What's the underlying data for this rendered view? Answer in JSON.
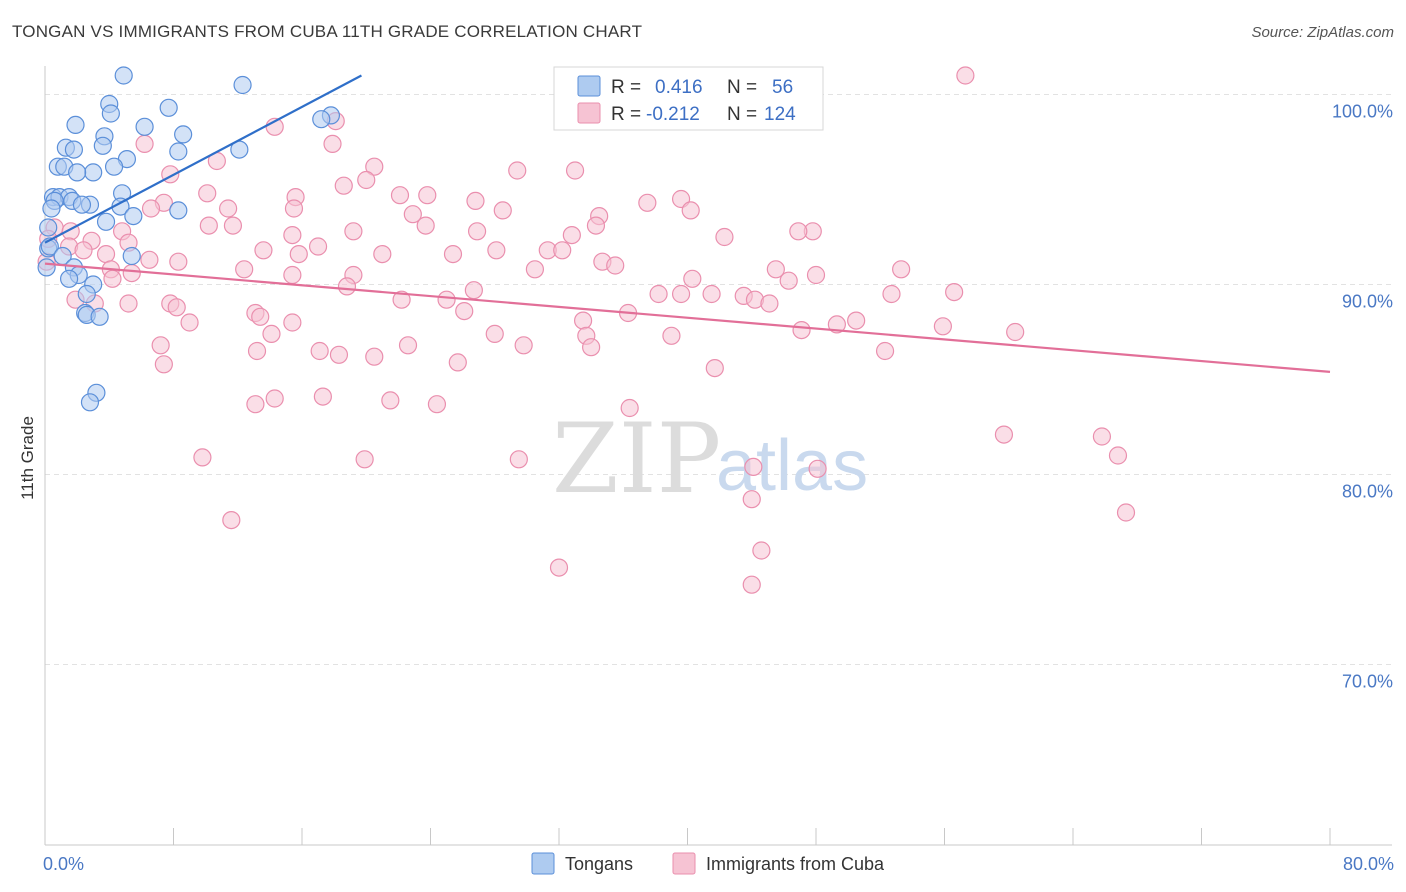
{
  "header": {
    "title": "TONGAN VS IMMIGRANTS FROM CUBA 11TH GRADE CORRELATION CHART",
    "source": "Source: ZipAtlas.com"
  },
  "watermark": {
    "zip": "ZIP",
    "atlas": "atlas"
  },
  "legend": {
    "tongans": {
      "r_label": "R =",
      "r_value": "0.416",
      "n_label": "N =",
      "n_value": "56"
    },
    "cuba": {
      "r_label": "R =",
      "r_value": "-0.212",
      "n_label": "N =",
      "n_value": "124"
    }
  },
  "bottom_legend": {
    "tongans": "Tongans",
    "cuba": "Immigrants from Cuba"
  },
  "colors": {
    "tongans_fill": "#aecbf0",
    "tongans_stroke": "#5b8fd9",
    "tongans_line": "#2f6fc9",
    "cuba_fill": "#f6c3d3",
    "cuba_stroke": "#ea8fae",
    "cuba_line": "#e26f98",
    "grid": "#e2e2e2",
    "tick_text": "#4a78c4"
  },
  "chart_data": {
    "type": "scatter",
    "title": "TONGAN VS IMMIGRANTS FROM CUBA 11TH GRADE CORRELATION CHART",
    "xlabel": "",
    "ylabel": "11th Grade",
    "xlim": [
      0,
      80
    ],
    "ylim": [
      60.5,
      101.5
    ],
    "x_tick_labels": [
      {
        "value": 0,
        "label": "0.0%"
      },
      {
        "value": 80,
        "label": "80.0%"
      }
    ],
    "x_minor_ticks": [
      0,
      8,
      16,
      24,
      32,
      40,
      48,
      56,
      64,
      72,
      80
    ],
    "y_tick_labels": [
      {
        "value": 100,
        "label": "100.0%"
      },
      {
        "value": 90,
        "label": "90.0%"
      },
      {
        "value": 80,
        "label": "80.0%"
      },
      {
        "value": 70,
        "label": "70.0%"
      }
    ],
    "grid": true,
    "series": [
      {
        "name": "Tongans",
        "trend": {
          "x": [
            0.0,
            19.7
          ],
          "y": [
            92.2,
            101.0
          ]
        },
        "points": [
          [
            4.9,
            101.0
          ],
          [
            12.3,
            100.5
          ],
          [
            4.0,
            99.5
          ],
          [
            7.7,
            99.3
          ],
          [
            4.1,
            99.0
          ],
          [
            17.8,
            98.9
          ],
          [
            17.2,
            98.7
          ],
          [
            1.9,
            98.4
          ],
          [
            6.2,
            98.3
          ],
          [
            3.7,
            97.8
          ],
          [
            8.6,
            97.9
          ],
          [
            3.6,
            97.3
          ],
          [
            1.3,
            97.2
          ],
          [
            1.8,
            97.1
          ],
          [
            8.3,
            97.0
          ],
          [
            12.1,
            97.1
          ],
          [
            5.1,
            96.6
          ],
          [
            0.8,
            96.2
          ],
          [
            1.2,
            96.2
          ],
          [
            4.3,
            96.2
          ],
          [
            3.0,
            95.9
          ],
          [
            2.0,
            95.9
          ],
          [
            4.8,
            94.8
          ],
          [
            0.5,
            94.6
          ],
          [
            0.9,
            94.6
          ],
          [
            1.5,
            94.6
          ],
          [
            0.6,
            94.4
          ],
          [
            1.7,
            94.4
          ],
          [
            2.8,
            94.2
          ],
          [
            2.3,
            94.2
          ],
          [
            0.4,
            94.0
          ],
          [
            4.7,
            94.1
          ],
          [
            8.3,
            93.9
          ],
          [
            5.5,
            93.6
          ],
          [
            3.8,
            93.3
          ],
          [
            0.2,
            93.0
          ],
          [
            0.2,
            91.9
          ],
          [
            0.3,
            92.0
          ],
          [
            1.1,
            91.5
          ],
          [
            5.4,
            91.5
          ],
          [
            0.1,
            90.9
          ],
          [
            1.8,
            90.9
          ],
          [
            2.1,
            90.5
          ],
          [
            1.5,
            90.3
          ],
          [
            3.0,
            90.0
          ],
          [
            2.6,
            89.5
          ],
          [
            2.5,
            88.5
          ],
          [
            2.6,
            88.4
          ],
          [
            3.4,
            88.3
          ],
          [
            3.2,
            84.3
          ],
          [
            2.8,
            83.8
          ]
        ]
      },
      {
        "name": "Immigrants from Cuba",
        "trend": {
          "x": [
            0.0,
            80.0
          ],
          "y": [
            91.1,
            85.4
          ]
        },
        "points": [
          [
            57.3,
            101.0
          ],
          [
            14.3,
            98.3
          ],
          [
            18.1,
            98.6
          ],
          [
            6.2,
            97.4
          ],
          [
            17.9,
            97.4
          ],
          [
            10.7,
            96.5
          ],
          [
            20.5,
            96.2
          ],
          [
            33.0,
            96.0
          ],
          [
            29.4,
            96.0
          ],
          [
            7.8,
            95.8
          ],
          [
            20.0,
            95.5
          ],
          [
            18.6,
            95.2
          ],
          [
            10.1,
            94.8
          ],
          [
            15.6,
            94.6
          ],
          [
            22.1,
            94.7
          ],
          [
            23.8,
            94.7
          ],
          [
            26.8,
            94.4
          ],
          [
            39.6,
            94.5
          ],
          [
            37.5,
            94.3
          ],
          [
            7.4,
            94.3
          ],
          [
            11.4,
            94.0
          ],
          [
            15.5,
            94.0
          ],
          [
            28.5,
            93.9
          ],
          [
            6.6,
            94.0
          ],
          [
            40.2,
            93.9
          ],
          [
            34.5,
            93.6
          ],
          [
            22.9,
            93.7
          ],
          [
            23.7,
            93.1
          ],
          [
            34.3,
            93.1
          ],
          [
            11.7,
            93.1
          ],
          [
            0.6,
            93.0
          ],
          [
            1.6,
            92.8
          ],
          [
            10.2,
            93.1
          ],
          [
            4.8,
            92.8
          ],
          [
            15.4,
            92.6
          ],
          [
            19.2,
            92.8
          ],
          [
            26.9,
            92.8
          ],
          [
            32.8,
            92.6
          ],
          [
            47.8,
            92.8
          ],
          [
            42.3,
            92.5
          ],
          [
            46.9,
            92.8
          ],
          [
            0.2,
            92.4
          ],
          [
            2.9,
            92.3
          ],
          [
            5.2,
            92.2
          ],
          [
            1.5,
            92.0
          ],
          [
            2.4,
            91.8
          ],
          [
            13.6,
            91.8
          ],
          [
            17.0,
            92.0
          ],
          [
            15.8,
            91.6
          ],
          [
            25.4,
            91.6
          ],
          [
            31.3,
            91.8
          ],
          [
            32.2,
            91.8
          ],
          [
            28.1,
            91.8
          ],
          [
            21.0,
            91.6
          ],
          [
            3.8,
            91.6
          ],
          [
            6.5,
            91.3
          ],
          [
            8.3,
            91.2
          ],
          [
            4.1,
            90.8
          ],
          [
            12.4,
            90.8
          ],
          [
            30.5,
            90.8
          ],
          [
            34.7,
            91.2
          ],
          [
            35.5,
            91.0
          ],
          [
            0.1,
            91.2
          ],
          [
            5.4,
            90.6
          ],
          [
            4.2,
            90.3
          ],
          [
            15.4,
            90.5
          ],
          [
            19.2,
            90.5
          ],
          [
            18.8,
            89.9
          ],
          [
            40.3,
            90.3
          ],
          [
            45.5,
            90.8
          ],
          [
            46.3,
            90.2
          ],
          [
            48.0,
            90.5
          ],
          [
            39.6,
            89.5
          ],
          [
            41.5,
            89.5
          ],
          [
            43.5,
            89.4
          ],
          [
            53.3,
            90.8
          ],
          [
            26.7,
            89.7
          ],
          [
            22.2,
            89.2
          ],
          [
            38.2,
            89.5
          ],
          [
            44.2,
            89.2
          ],
          [
            45.1,
            89.0
          ],
          [
            52.7,
            89.5
          ],
          [
            56.6,
            89.6
          ],
          [
            25.0,
            89.2
          ],
          [
            1.9,
            89.2
          ],
          [
            3.1,
            89.0
          ],
          [
            5.2,
            89.0
          ],
          [
            7.8,
            89.0
          ],
          [
            8.2,
            88.8
          ],
          [
            13.1,
            88.5
          ],
          [
            13.4,
            88.3
          ],
          [
            15.4,
            88.0
          ],
          [
            26.1,
            88.6
          ],
          [
            36.3,
            88.5
          ],
          [
            9.0,
            88.0
          ],
          [
            33.5,
            88.1
          ],
          [
            47.1,
            87.6
          ],
          [
            49.3,
            87.9
          ],
          [
            50.5,
            88.1
          ],
          [
            55.9,
            87.8
          ],
          [
            60.4,
            87.5
          ],
          [
            14.1,
            87.4
          ],
          [
            28.0,
            87.4
          ],
          [
            33.7,
            87.3
          ],
          [
            39.0,
            87.3
          ],
          [
            7.2,
            86.8
          ],
          [
            13.2,
            86.5
          ],
          [
            17.1,
            86.5
          ],
          [
            18.3,
            86.3
          ],
          [
            20.5,
            86.2
          ],
          [
            22.6,
            86.8
          ],
          [
            29.8,
            86.8
          ],
          [
            34.0,
            86.7
          ],
          [
            52.3,
            86.5
          ],
          [
            7.4,
            85.8
          ],
          [
            25.7,
            85.9
          ],
          [
            41.7,
            85.6
          ],
          [
            14.3,
            84.0
          ],
          [
            17.3,
            84.1
          ],
          [
            13.1,
            83.7
          ],
          [
            21.5,
            83.9
          ],
          [
            24.4,
            83.7
          ],
          [
            36.4,
            83.5
          ],
          [
            59.7,
            82.1
          ],
          [
            65.8,
            82.0
          ],
          [
            66.8,
            81.0
          ],
          [
            9.8,
            80.9
          ],
          [
            19.9,
            80.8
          ],
          [
            29.5,
            80.8
          ],
          [
            44.1,
            80.4
          ],
          [
            48.1,
            80.3
          ],
          [
            44.0,
            78.7
          ],
          [
            67.3,
            78.0
          ],
          [
            11.6,
            77.6
          ],
          [
            44.6,
            76.0
          ],
          [
            32.0,
            75.1
          ],
          [
            44.0,
            74.2
          ]
        ]
      }
    ]
  }
}
